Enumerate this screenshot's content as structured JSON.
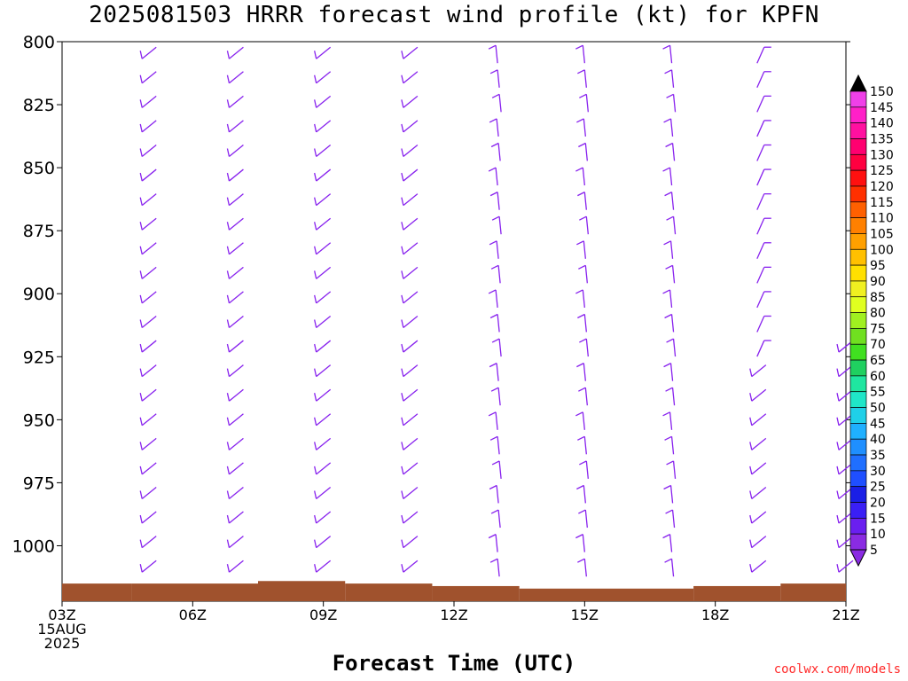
{
  "page_title": "2025081503 HRRR forecast wind profile (kt) for KPFN",
  "credit": "coolwx.com/models",
  "chart_data": {
    "type": "wind_profile",
    "title": "2025081503 HRRR forecast wind profile (kt) for KPFN",
    "xlabel": "Forecast Time (UTC)",
    "ylabel": "",
    "x_ticks": [
      "03Z\n15AUG\n2025",
      "06Z",
      "09Z",
      "12Z",
      "15Z",
      "18Z",
      "21Z"
    ],
    "x_tick_hours": [
      3,
      6,
      9,
      12,
      15,
      18,
      21
    ],
    "xlim_hours": [
      3,
      21
    ],
    "y_ticks": [
      800,
      825,
      850,
      875,
      900,
      925,
      950,
      975,
      1000
    ],
    "ylim_hPa": [
      800,
      1022
    ],
    "barb_color": "#8822ee",
    "terrain_color": "#a0522d",
    "barb_columns_hours": [
      5,
      7,
      9,
      11,
      13,
      15,
      17,
      19,
      21
    ],
    "colorbar": {
      "levels": [
        5,
        10,
        15,
        20,
        25,
        30,
        35,
        40,
        45,
        50,
        55,
        60,
        65,
        70,
        75,
        80,
        85,
        90,
        95,
        100,
        105,
        110,
        115,
        120,
        125,
        130,
        135,
        140,
        145,
        150
      ],
      "colors": [
        "#8a2be2",
        "#6a1ff0",
        "#3a1ff5",
        "#1a1fe6",
        "#1f4fff",
        "#1f6fff",
        "#1f8fff",
        "#1fb0ff",
        "#1fd0e8",
        "#1fe6c8",
        "#1fe6a0",
        "#1fd060",
        "#40e020",
        "#70e020",
        "#a0f020",
        "#e0ff20",
        "#f0f020",
        "#ffe000",
        "#ffc000",
        "#ffa000",
        "#ff8000",
        "#ff6000",
        "#ff3000",
        "#ff1010",
        "#ff0040",
        "#ff0070",
        "#ff10a0",
        "#ff20c8",
        "#f040e8",
        "#000000"
      ]
    }
  }
}
